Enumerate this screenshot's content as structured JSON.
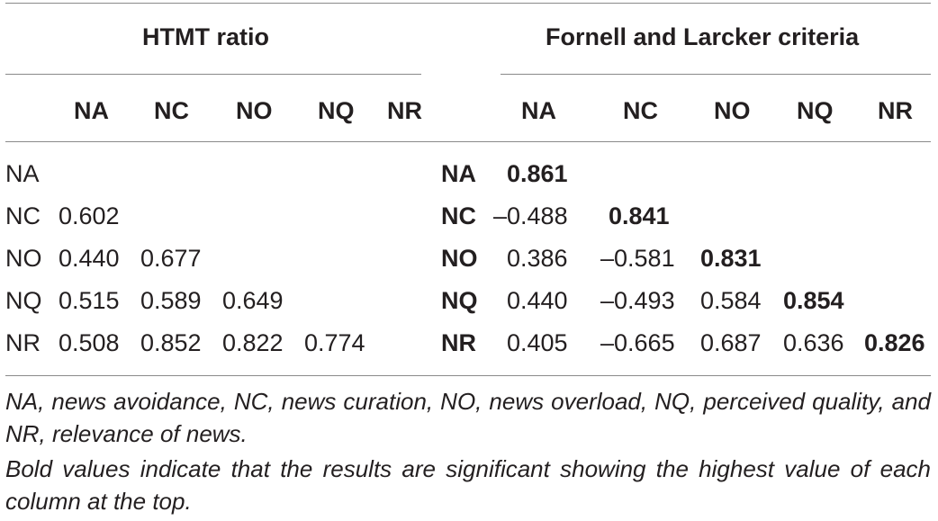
{
  "header": {
    "group_left": "HTMT ratio",
    "group_right": "Fornell and Larcker criteria"
  },
  "columns_left": [
    "NA",
    "NC",
    "NO",
    "NQ",
    "NR"
  ],
  "columns_right": [
    "NA",
    "NC",
    "NO",
    "NQ",
    "NR"
  ],
  "rows": [
    {
      "label": "NA",
      "htmt": [],
      "fl_label": "NA",
      "fl": [
        "0.861"
      ]
    },
    {
      "label": "NC",
      "htmt": [
        "0.602"
      ],
      "fl_label": "NC",
      "fl": [
        "–0.488",
        "0.841"
      ]
    },
    {
      "label": "NO",
      "htmt": [
        "0.440",
        "0.677"
      ],
      "fl_label": "NO",
      "fl": [
        "0.386",
        "–0.581",
        "0.831"
      ]
    },
    {
      "label": "NQ",
      "htmt": [
        "0.515",
        "0.589",
        "0.649"
      ],
      "fl_label": "NQ",
      "fl": [
        "0.440",
        "–0.493",
        "0.584",
        "0.854"
      ]
    },
    {
      "label": "NR",
      "htmt": [
        "0.508",
        "0.852",
        "0.822",
        "0.774"
      ],
      "fl_label": "NR",
      "fl": [
        "0.405",
        "–0.665",
        "0.687",
        "0.636",
        "0.826"
      ]
    }
  ],
  "footnotes": {
    "abbreviations": "NA, news avoidance, NC, news curation, NO, news overload, NQ, perceived quality, and NR, relevance of news.",
    "bold_note": "Bold values indicate that the results are significant showing the highest value of each column at the top."
  }
}
